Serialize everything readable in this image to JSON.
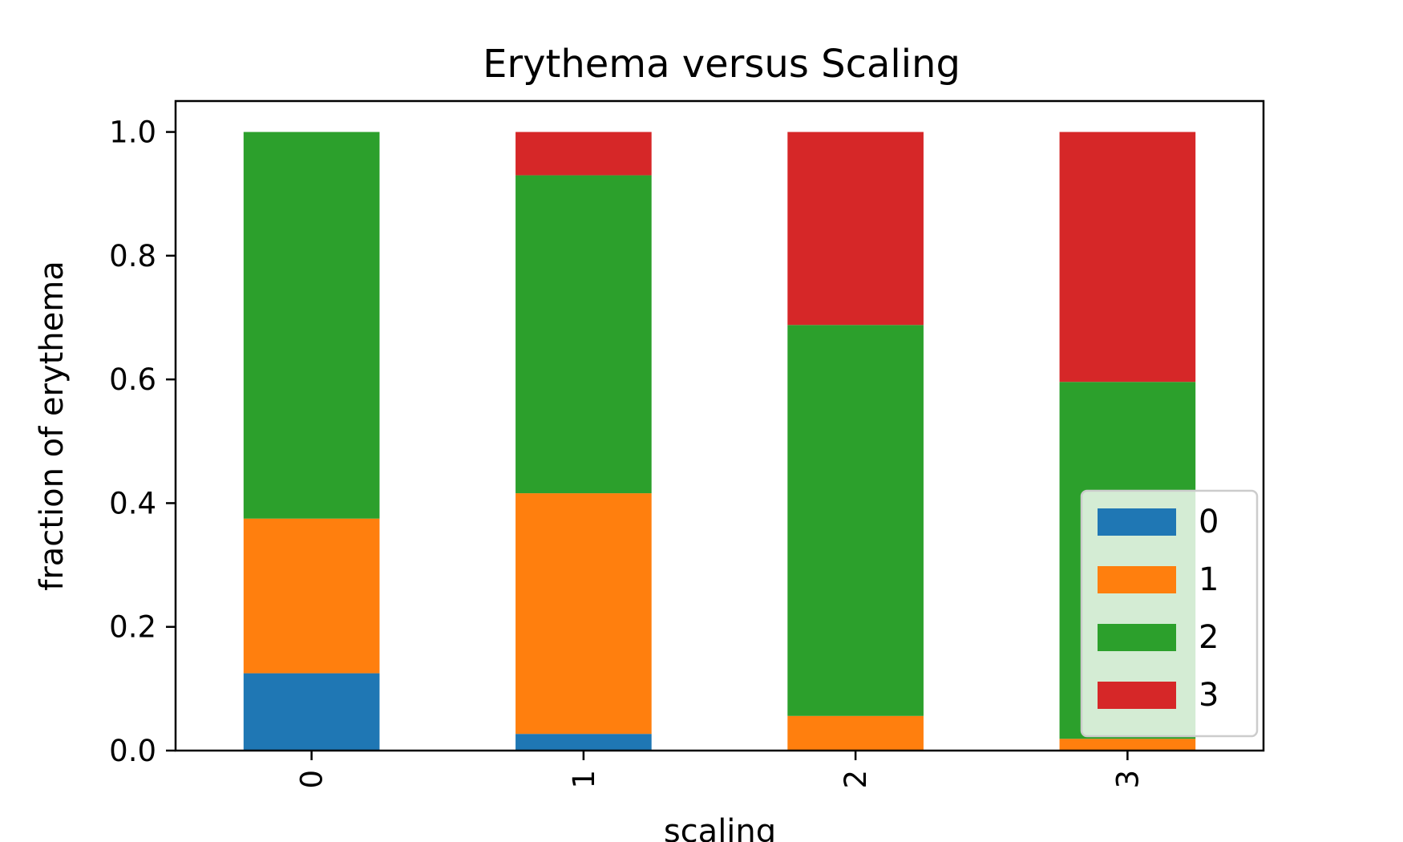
{
  "chart_data": {
    "type": "bar",
    "stacked": true,
    "title": "Erythema versus Scaling",
    "xlabel": "scaling",
    "ylabel": "fraction of erythema",
    "categories": [
      "0",
      "1",
      "2",
      "3"
    ],
    "ylim": [
      0,
      1.05
    ],
    "yticks": [
      "0.0",
      "0.2",
      "0.4",
      "0.6",
      "0.8",
      "1.0"
    ],
    "xtick_rotation": "vertical",
    "grid": false,
    "legend_position": "lower-right",
    "series": [
      {
        "name": "0",
        "color": "#1f77b4",
        "values": [
          0.125,
          0.027,
          0.0,
          0.0
        ]
      },
      {
        "name": "1",
        "color": "#ff7f0e",
        "values": [
          0.25,
          0.389,
          0.056,
          0.019
        ]
      },
      {
        "name": "2",
        "color": "#2ca02c",
        "values": [
          0.625,
          0.514,
          0.632,
          0.577
        ]
      },
      {
        "name": "3",
        "color": "#d62728",
        "values": [
          0.0,
          0.07,
          0.312,
          0.404
        ]
      }
    ]
  }
}
